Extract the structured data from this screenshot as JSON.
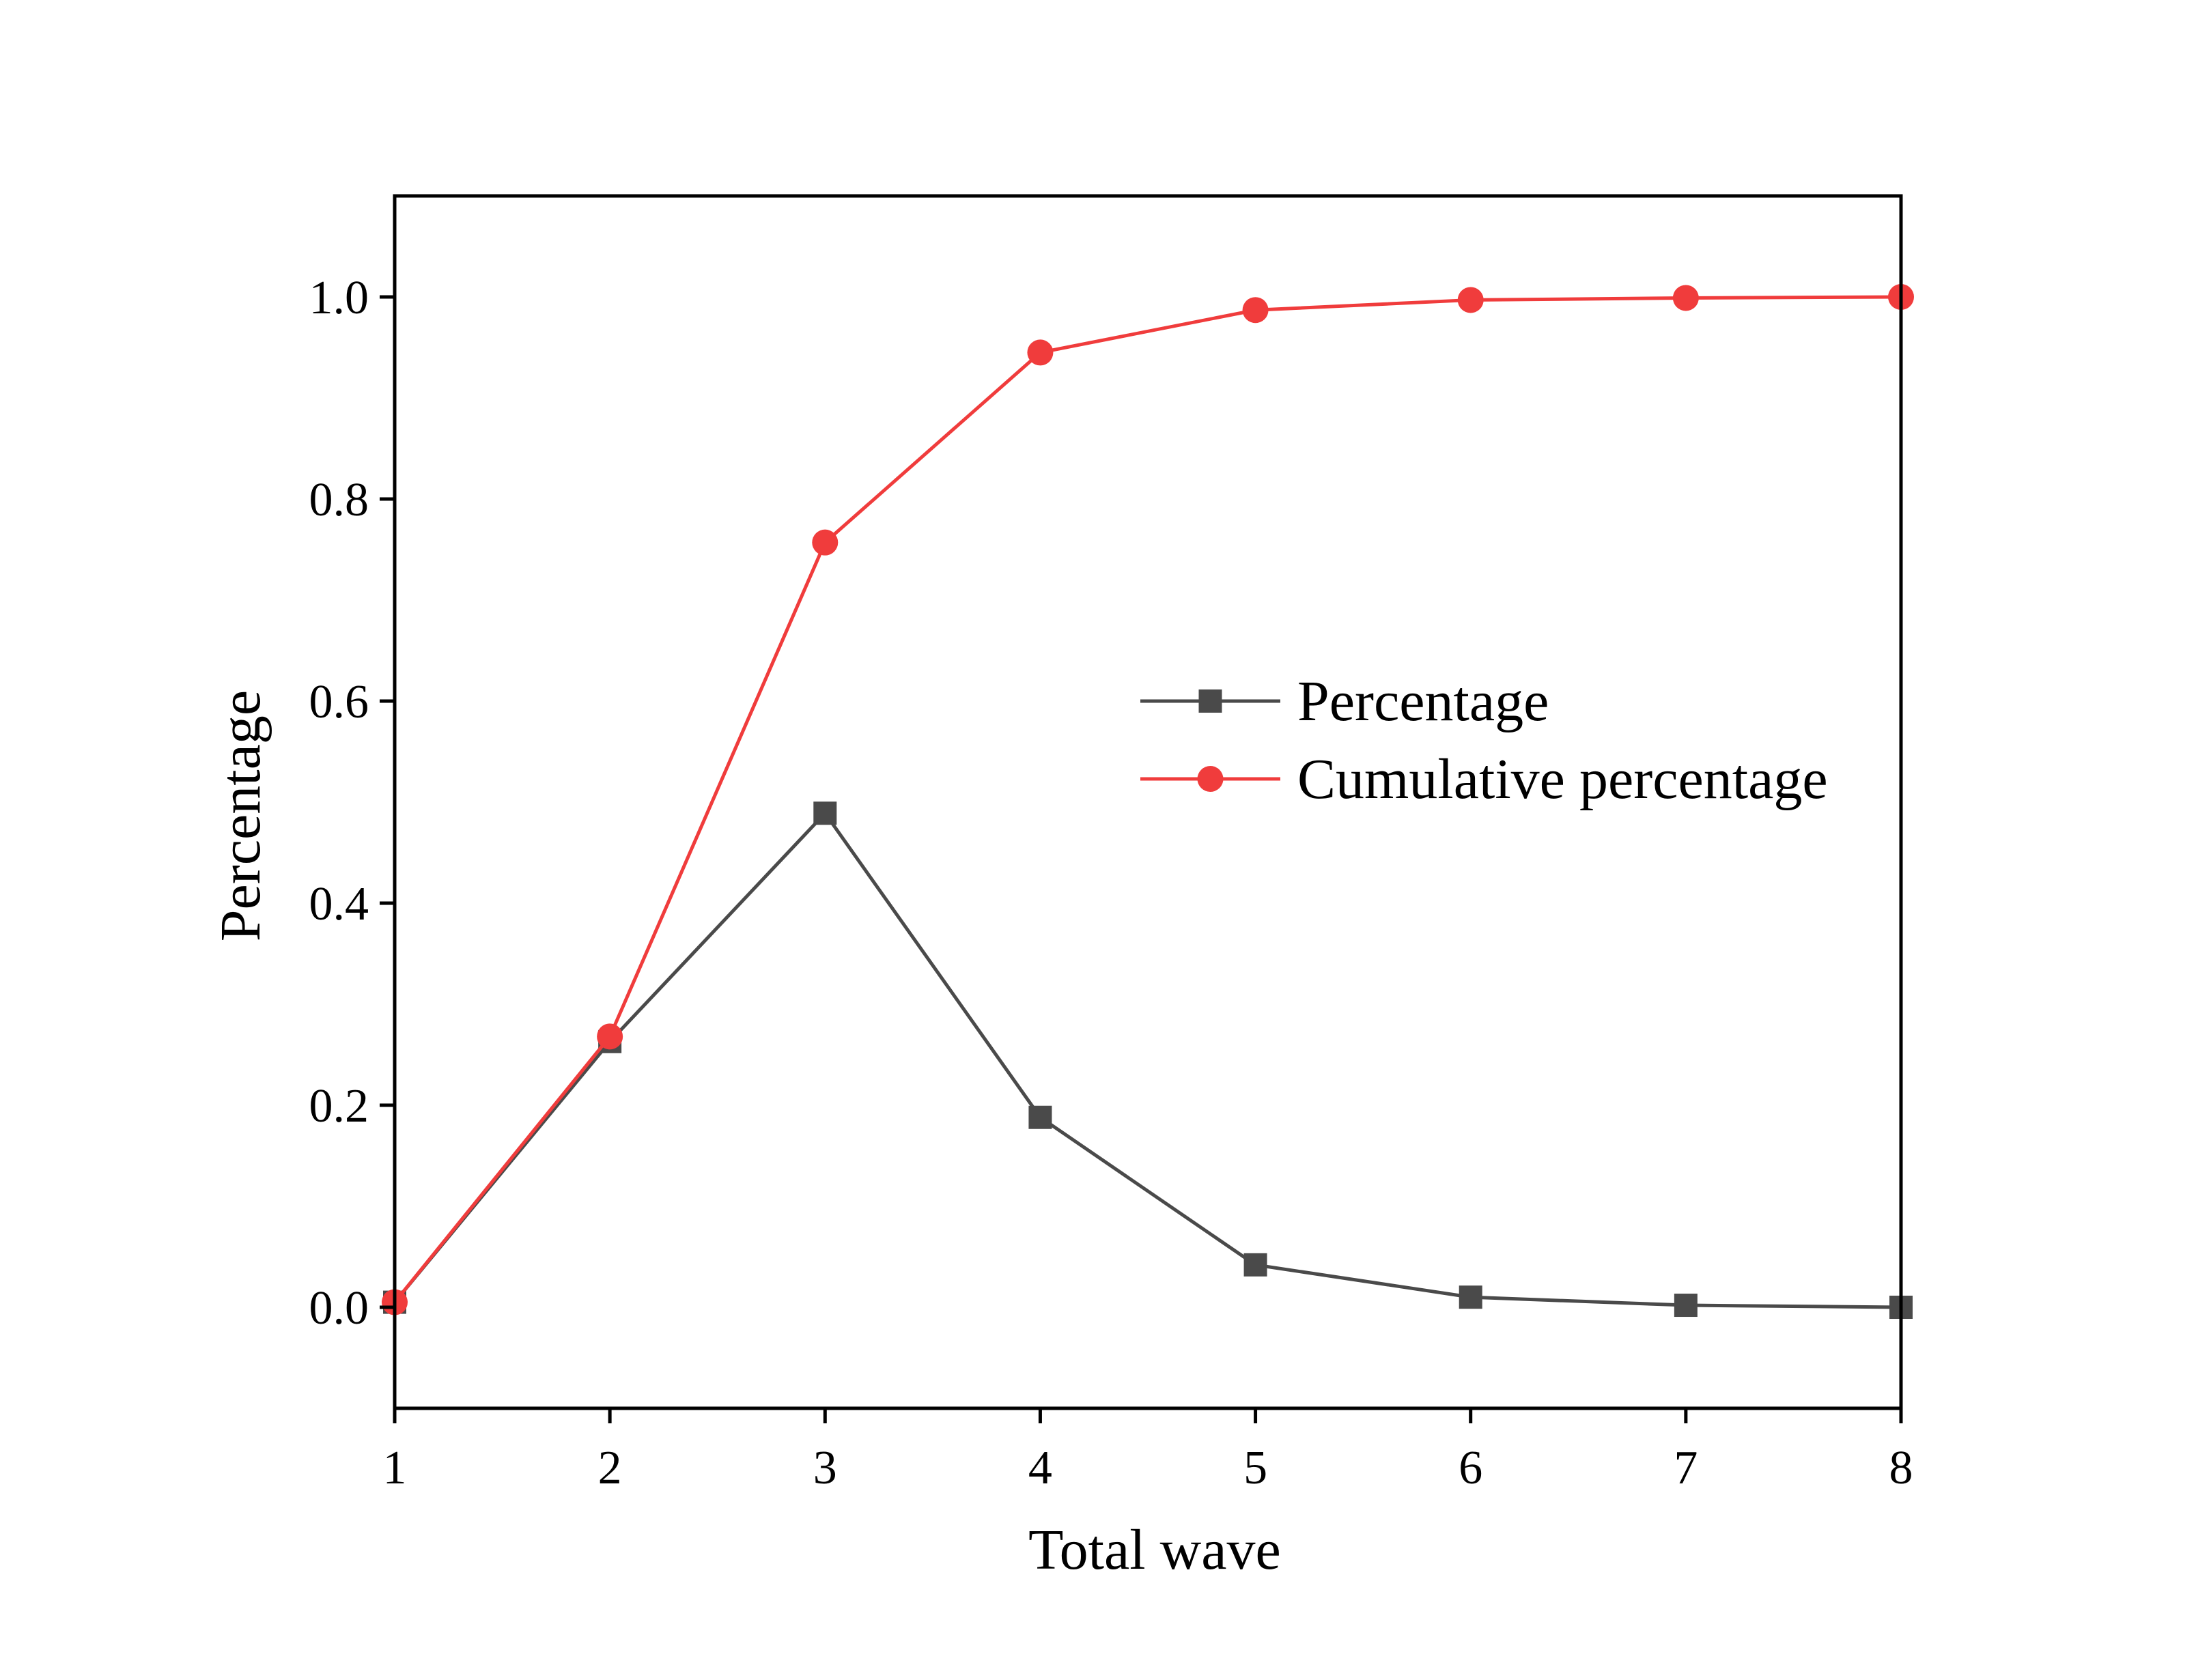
{
  "chart_data": {
    "type": "line",
    "title": "",
    "xlabel": "Total wave",
    "ylabel": "Percentage",
    "x": [
      1,
      2,
      3,
      4,
      5,
      6,
      7,
      8
    ],
    "xlim": [
      1,
      8
    ],
    "ylim": [
      -0.1,
      1.1
    ],
    "xticks": [
      "1",
      "2",
      "3",
      "4",
      "5",
      "6",
      "7",
      "8"
    ],
    "yticks": [
      0.0,
      0.2,
      0.4,
      0.6,
      0.8,
      1.0
    ],
    "ytick_labels": [
      "0.0",
      "0.2",
      "0.4",
      "0.6",
      "0.8",
      "1.0"
    ],
    "grid": false,
    "legend_position": "center-right",
    "series": [
      {
        "name": "Percentage",
        "marker": "square",
        "color": "#4a4a4a",
        "values": [
          0.005,
          0.263,
          0.489,
          0.188,
          0.042,
          0.01,
          0.002,
          0.0
        ]
      },
      {
        "name": "Cumulative percentage",
        "marker": "circle",
        "color": "#f03c3c",
        "values": [
          0.005,
          0.268,
          0.757,
          0.945,
          0.987,
          0.997,
          0.999,
          1.0
        ]
      }
    ]
  }
}
